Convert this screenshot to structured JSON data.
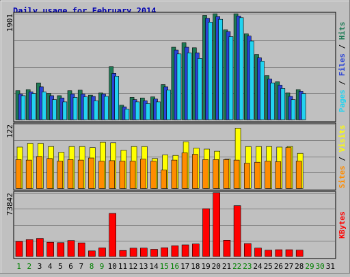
{
  "chart_data": [
    {
      "type": "bar",
      "title": "Daily usage for February 2014",
      "ylim": [
        0,
        1901
      ],
      "ytick_top": "1901",
      "legend_labels": [
        "Pages",
        "Files",
        "Hits"
      ],
      "legend_separator": " / ",
      "categories": [
        "1",
        "2",
        "3",
        "4",
        "5",
        "6",
        "7",
        "8",
        "9",
        "10",
        "11",
        "12",
        "13",
        "14",
        "15",
        "16",
        "17",
        "18",
        "19",
        "20",
        "21",
        "22",
        "23",
        "24",
        "25",
        "26",
        "27",
        "28",
        "29",
        "30",
        "31"
      ],
      "weekend_days": [
        "1",
        "2",
        "8",
        "9",
        "15",
        "16",
        "22",
        "23",
        "29",
        "30"
      ],
      "series": [
        {
          "name": "Hits",
          "color": "#1d7a55",
          "values": [
            520,
            540,
            660,
            470,
            430,
            520,
            530,
            440,
            480,
            950,
            260,
            400,
            390,
            410,
            630,
            1300,
            1380,
            1290,
            1870,
            1900,
            1610,
            1900,
            1540,
            1170,
            790,
            680,
            480,
            540,
            0,
            0,
            0
          ]
        },
        {
          "name": "Files",
          "color": "#2a43d6",
          "values": [
            460,
            500,
            590,
            430,
            390,
            460,
            460,
            420,
            460,
            830,
            230,
            360,
            340,
            370,
            590,
            1250,
            1300,
            1200,
            1820,
            1850,
            1580,
            1860,
            1500,
            1110,
            730,
            620,
            420,
            510,
            0,
            0,
            0
          ]
        },
        {
          "name": "Pages",
          "color": "#22d3f0",
          "values": [
            430,
            470,
            500,
            360,
            320,
            400,
            410,
            340,
            420,
            780,
            190,
            320,
            290,
            320,
            530,
            1180,
            1200,
            1100,
            1750,
            1800,
            1490,
            1830,
            1410,
            1050,
            660,
            560,
            360,
            470,
            0,
            0,
            0
          ]
        }
      ]
    },
    {
      "type": "bar",
      "ylim": [
        0,
        122
      ],
      "ytick_top": "122",
      "legend_labels": [
        "Sites",
        "Visits"
      ],
      "legend_separator": " / ",
      "series": [
        {
          "name": "Visits",
          "color": "#ffff00",
          "values": [
            79,
            86,
            86,
            80,
            69,
            80,
            80,
            78,
            88,
            87,
            73,
            80,
            80,
            57,
            64,
            63,
            89,
            77,
            75,
            71,
            56,
            115,
            80,
            80,
            80,
            79,
            80,
            67,
            0,
            0,
            0
          ]
        },
        {
          "name": "Sites",
          "color": "#ff8c00",
          "values": [
            55,
            54,
            61,
            57,
            52,
            55,
            54,
            58,
            52,
            53,
            52,
            52,
            56,
            52,
            35,
            54,
            68,
            65,
            55,
            55,
            55,
            54,
            48,
            50,
            52,
            51,
            78,
            52,
            0,
            0,
            0
          ]
        }
      ]
    },
    {
      "type": "bar",
      "ylim": [
        0,
        73842
      ],
      "ytick_top": "73842",
      "legend_labels": [
        "KBytes"
      ],
      "series": [
        {
          "name": "KBytes",
          "color": "#ff0000",
          "values": [
            17500,
            19500,
            21000,
            16500,
            16000,
            18500,
            15800,
            6500,
            10000,
            50000,
            7000,
            9700,
            9800,
            8300,
            10200,
            12500,
            13500,
            14500,
            55500,
            74000,
            18800,
            59000,
            15000,
            9800,
            7300,
            7900,
            7900,
            7400,
            0,
            0,
            0
          ]
        }
      ]
    }
  ]
}
